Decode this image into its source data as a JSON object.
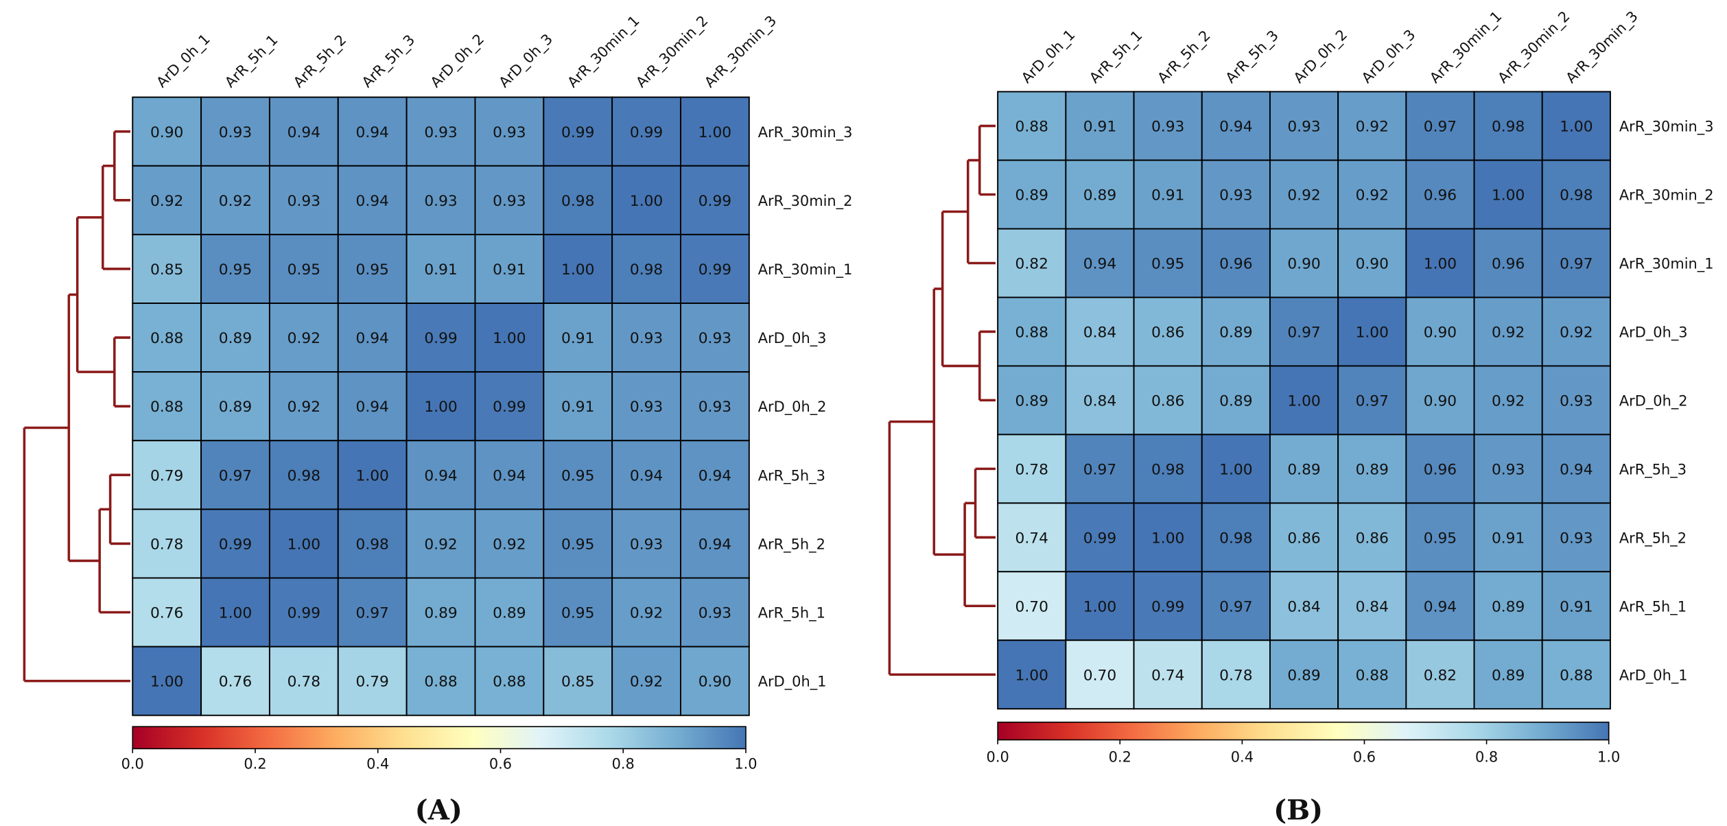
{
  "chart_data": [
    {
      "type": "heatmap",
      "panel_label": "(A)",
      "title": "",
      "columns": [
        "ArD_0h_1",
        "ArR_5h_1",
        "ArR_5h_2",
        "ArR_5h_3",
        "ArD_0h_2",
        "ArD_0h_3",
        "ArR_30min_1",
        "ArR_30min_2",
        "ArR_30min_3"
      ],
      "rows": [
        "ArR_30min_3",
        "ArR_30min_2",
        "ArR_30min_1",
        "ArD_0h_3",
        "ArD_0h_2",
        "ArR_5h_3",
        "ArR_5h_2",
        "ArR_5h_1",
        "ArD_0h_1"
      ],
      "values": [
        [
          0.9,
          0.93,
          0.94,
          0.94,
          0.93,
          0.93,
          0.99,
          0.99,
          1.0
        ],
        [
          0.92,
          0.92,
          0.93,
          0.94,
          0.93,
          0.93,
          0.98,
          1.0,
          0.99
        ],
        [
          0.85,
          0.95,
          0.95,
          0.95,
          0.91,
          0.91,
          1.0,
          0.98,
          0.99
        ],
        [
          0.88,
          0.89,
          0.92,
          0.94,
          0.99,
          1.0,
          0.91,
          0.93,
          0.93
        ],
        [
          0.88,
          0.89,
          0.92,
          0.94,
          1.0,
          0.99,
          0.91,
          0.93,
          0.93
        ],
        [
          0.79,
          0.97,
          0.98,
          1.0,
          0.94,
          0.94,
          0.95,
          0.94,
          0.94
        ],
        [
          0.78,
          0.99,
          1.0,
          0.98,
          0.92,
          0.92,
          0.95,
          0.93,
          0.94
        ],
        [
          0.76,
          1.0,
          0.99,
          0.97,
          0.89,
          0.89,
          0.95,
          0.92,
          0.93
        ],
        [
          1.0,
          0.76,
          0.78,
          0.79,
          0.88,
          0.88,
          0.85,
          0.92,
          0.9
        ]
      ],
      "colorbar": {
        "ticks": [
          "0.0",
          "0.2",
          "0.4",
          "0.6",
          "0.8",
          "1.0"
        ],
        "range": [
          0,
          1
        ],
        "colormap": "RdYlBu"
      },
      "dendrogram": "row clustering"
    },
    {
      "type": "heatmap",
      "panel_label": "(B)",
      "title": "",
      "columns": [
        "ArD_0h_1",
        "ArR_5h_1",
        "ArR_5h_2",
        "ArR_5h_3",
        "ArD_0h_2",
        "ArD_0h_3",
        "ArR_30min_1",
        "ArR_30min_2",
        "ArR_30min_3"
      ],
      "rows": [
        "ArR_30min_3",
        "ArR_30min_2",
        "ArR_30min_1",
        "ArD_0h_3",
        "ArD_0h_2",
        "ArR_5h_3",
        "ArR_5h_2",
        "ArR_5h_1",
        "ArD_0h_1"
      ],
      "values": [
        [
          0.88,
          0.91,
          0.93,
          0.94,
          0.93,
          0.92,
          0.97,
          0.98,
          1.0
        ],
        [
          0.89,
          0.89,
          0.91,
          0.93,
          0.92,
          0.92,
          0.96,
          1.0,
          0.98
        ],
        [
          0.82,
          0.94,
          0.95,
          0.96,
          0.9,
          0.9,
          1.0,
          0.96,
          0.97
        ],
        [
          0.88,
          0.84,
          0.86,
          0.89,
          0.97,
          1.0,
          0.9,
          0.92,
          0.92
        ],
        [
          0.89,
          0.84,
          0.86,
          0.89,
          1.0,
          0.97,
          0.9,
          0.92,
          0.93
        ],
        [
          0.78,
          0.97,
          0.98,
          1.0,
          0.89,
          0.89,
          0.96,
          0.93,
          0.94
        ],
        [
          0.74,
          0.99,
          1.0,
          0.98,
          0.86,
          0.86,
          0.95,
          0.91,
          0.93
        ],
        [
          0.7,
          1.0,
          0.99,
          0.97,
          0.84,
          0.84,
          0.94,
          0.89,
          0.91
        ],
        [
          1.0,
          0.7,
          0.74,
          0.78,
          0.89,
          0.88,
          0.82,
          0.89,
          0.88
        ]
      ],
      "colorbar": {
        "ticks": [
          "0.0",
          "0.2",
          "0.4",
          "0.6",
          "0.8",
          "1.0"
        ],
        "range": [
          0,
          1
        ],
        "colormap": "RdYlBu"
      },
      "dendrogram": "row clustering"
    }
  ],
  "colors": {
    "dendrogram": "#8b1a1a",
    "cell_border": "#000000",
    "colormap_stops": [
      "#a50026",
      "#d73027",
      "#f46d43",
      "#fdae61",
      "#fee090",
      "#ffffbf",
      "#e0f3f8",
      "#abd9e9",
      "#74add1",
      "#4575b4"
    ]
  }
}
